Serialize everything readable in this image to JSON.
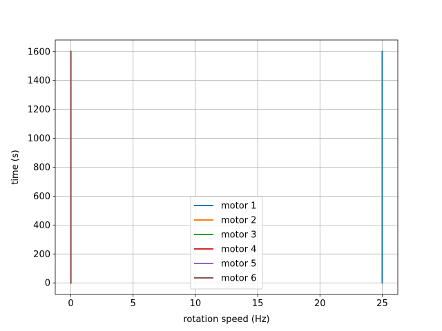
{
  "chart_data": {
    "type": "line",
    "title": "",
    "xlabel": "rotation speed (Hz)",
    "ylabel": "time (s)",
    "xlim": [
      -1.25,
      26.25
    ],
    "ylim": [
      -80,
      1680
    ],
    "xticks": [
      0,
      5,
      10,
      15,
      20,
      25
    ],
    "yticks": [
      0,
      200,
      400,
      600,
      800,
      1000,
      1200,
      1400,
      1600
    ],
    "grid": true,
    "legend_placement": "bottom-center",
    "series": [
      {
        "name": "motor 1",
        "color": "#1f77b4",
        "x": [
          25,
          25
        ],
        "y": [
          0,
          1600
        ]
      },
      {
        "name": "motor 2",
        "color": "#ff7f0e",
        "x": [
          0,
          0
        ],
        "y": [
          0,
          1600
        ]
      },
      {
        "name": "motor 3",
        "color": "#2ca02c",
        "x": [
          0,
          0
        ],
        "y": [
          0,
          1600
        ]
      },
      {
        "name": "motor 4",
        "color": "#d62728",
        "x": [
          0,
          0
        ],
        "y": [
          0,
          1600
        ]
      },
      {
        "name": "motor 5",
        "color": "#9467bd",
        "x": [
          0,
          0
        ],
        "y": [
          0,
          1600
        ]
      },
      {
        "name": "motor 6",
        "color": "#8c564b",
        "x": [
          0,
          0
        ],
        "y": [
          0,
          1600
        ]
      }
    ]
  }
}
